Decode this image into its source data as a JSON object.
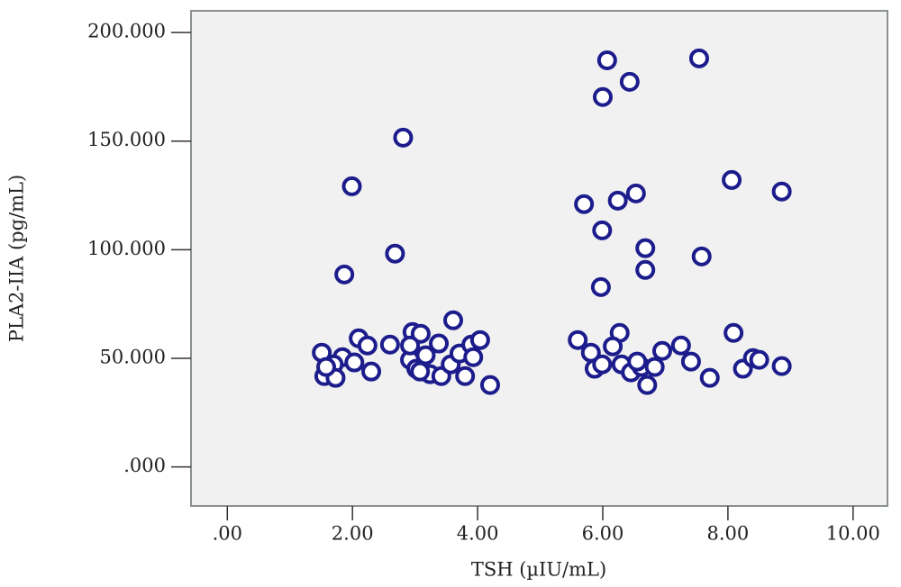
{
  "chart_data": {
    "type": "scatter",
    "x_label": "TSH (µIU/mL)",
    "y_label": "PLA2-IIA (pg/mL)",
    "color": "#1c1c8c",
    "background": "#f1f1f1",
    "xlim": [
      -0.58,
      10.55
    ],
    "ylim": [
      -18,
      210
    ],
    "xticks": [
      {
        "value": 0,
        "label": ".00"
      },
      {
        "value": 2,
        "label": "2.00"
      },
      {
        "value": 4,
        "label": "4.00"
      },
      {
        "value": 6,
        "label": "6.00"
      },
      {
        "value": 8,
        "label": "8.00"
      },
      {
        "value": 10,
        "label": "10.00"
      }
    ],
    "yticks": [
      {
        "value": 0,
        "label": ".000"
      },
      {
        "value": 50,
        "label": "50.000"
      },
      {
        "value": 100,
        "label": "100.000"
      },
      {
        "value": 150,
        "label": "150.000"
      },
      {
        "value": 200,
        "label": "200.000"
      }
    ],
    "x": [
      1.99,
      2.81,
      2.68,
      1.87,
      6.07,
      6.0,
      6.43,
      7.54,
      5.7,
      6.24,
      6.53,
      5.99,
      6.68,
      6.68,
      7.58,
      5.97,
      8.06,
      8.86,
      3.61,
      2.1,
      2.96,
      3.09,
      2.6,
      2.24,
      1.51,
      1.84,
      1.7,
      2.03,
      2.3,
      1.55,
      1.73,
      1.58,
      2.92,
      3.02,
      3.17,
      3.38,
      3.24,
      3.42,
      3.57,
      3.71,
      3.9,
      4.04,
      3.93,
      3.8,
      4.2,
      2.92,
      3.08,
      5.6,
      6.27,
      5.81,
      6.16,
      5.87,
      5.99,
      6.3,
      6.45,
      6.62,
      6.83,
      6.95,
      7.25,
      7.41,
      6.71,
      7.71,
      8.09,
      8.24,
      8.4,
      8.5,
      8.86,
      6.55
    ],
    "y": [
      129.2,
      151.6,
      98.2,
      88.6,
      187.2,
      170.3,
      177.3,
      188.1,
      121,
      122.6,
      125.9,
      108.9,
      100.7,
      90.7,
      96.9,
      82.8,
      132.1,
      126.8,
      67.5,
      59.2,
      62.1,
      61.3,
      56.3,
      55.9,
      52.6,
      50.5,
      47.2,
      48.1,
      43.9,
      41.8,
      41,
      46,
      49.3,
      45.2,
      51.4,
      56.8,
      42.7,
      41.8,
      47.2,
      52.2,
      56.3,
      58.4,
      50.5,
      41.8,
      37.7,
      55.9,
      43.9,
      58.4,
      61.7,
      52.6,
      55.5,
      45.2,
      47.2,
      47.2,
      43.5,
      46,
      46,
      53.4,
      55.9,
      48.5,
      37.7,
      41,
      61.7,
      45.2,
      50.1,
      49.3,
      46.4,
      48.5
    ]
  }
}
